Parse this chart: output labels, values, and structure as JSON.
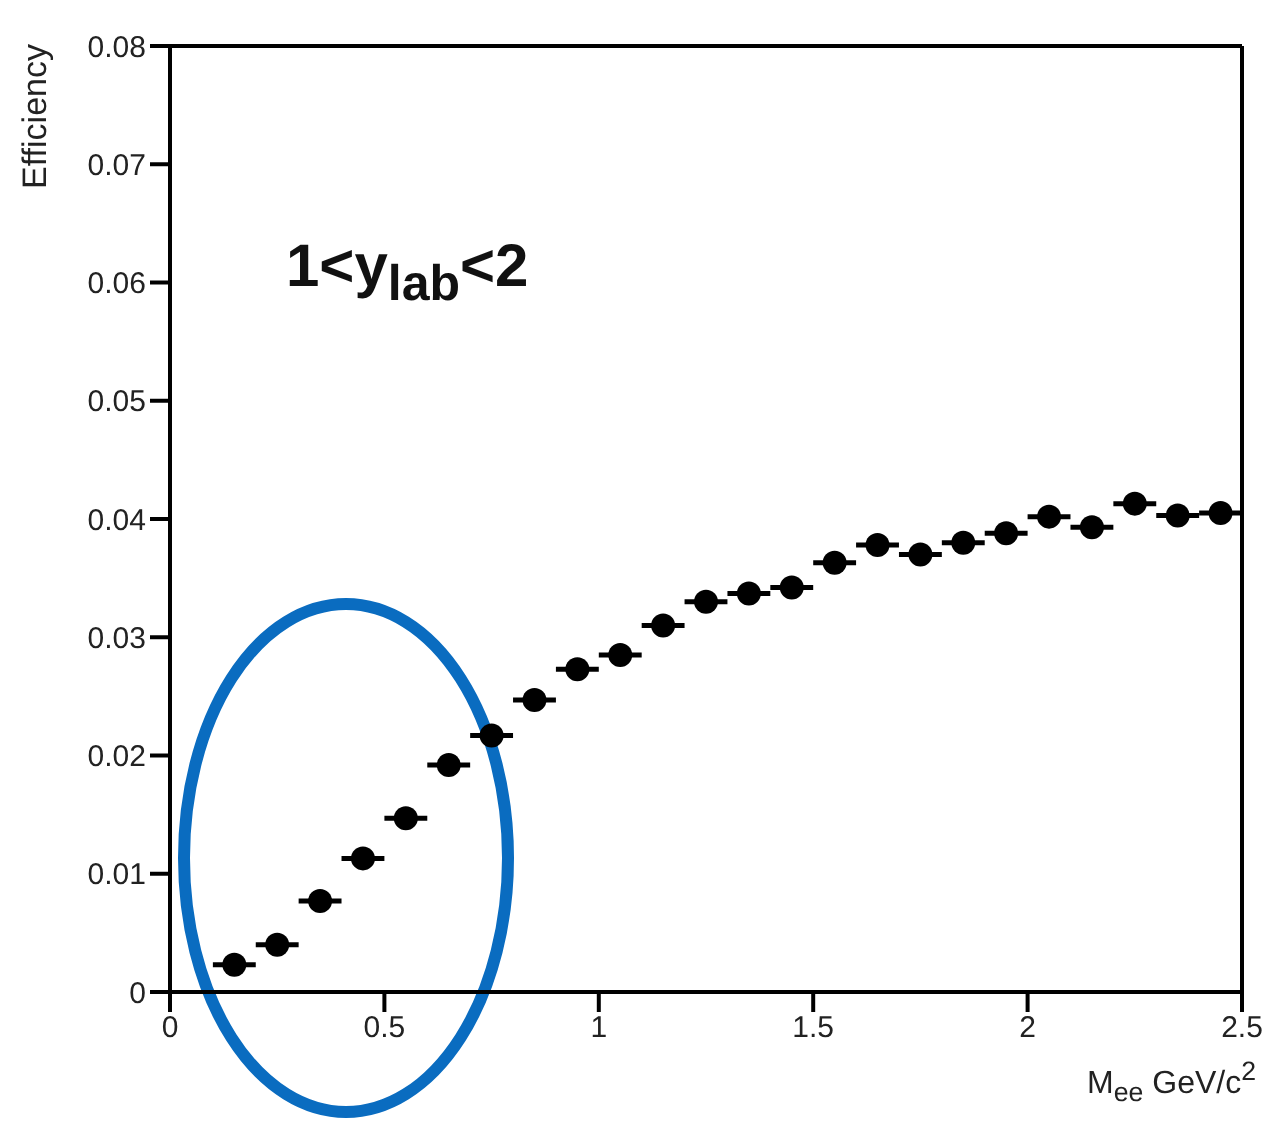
{
  "chart_data": {
    "type": "scatter",
    "xlabel": "M$_{ee}$ GeV/c$^{2}$",
    "ylabel": "Efficiency",
    "annotations": [
      "1<y$_{lab}$<2"
    ],
    "x": [
      0.15,
      0.25,
      0.35,
      0.45,
      0.55,
      0.65,
      0.75,
      0.85,
      0.95,
      1.05,
      1.15,
      1.25,
      1.35,
      1.45,
      1.55,
      1.65,
      1.75,
      1.85,
      1.95,
      2.05,
      2.15,
      2.25,
      2.35,
      2.45
    ],
    "series": [
      {
        "color": "#000000",
        "values": [
          0.0023,
          0.004,
          0.0077,
          0.0113,
          0.0147,
          0.0192,
          0.0217,
          0.0247,
          0.0273,
          0.0285,
          0.031,
          0.033,
          0.0337,
          0.0342,
          0.0363,
          0.0378,
          0.037,
          0.038,
          0.0388,
          0.0402,
          0.0393,
          0.0413,
          0.0403,
          0.0405
        ],
        "xerrors": [
          0.05,
          0.05,
          0.05,
          0.05,
          0.05,
          0.05,
          0.05,
          0.05,
          0.05,
          0.05,
          0.05,
          0.05,
          0.05,
          0.05,
          0.05,
          0.05,
          0.05,
          0.05,
          0.05,
          0.05,
          0.05,
          0.05,
          0.05,
          0.05
        ]
      }
    ],
    "xlim": [
      0,
      2.5
    ],
    "xticks": [
      0,
      0.5,
      1,
      1.5,
      2,
      2.5
    ],
    "ylim": [
      0,
      0.08
    ],
    "yticks": [
      0,
      0.01,
      0.02,
      0.03,
      0.04,
      0.05,
      0.06,
      0.07,
      0.08
    ],
    "marker": "circle"
  }
}
